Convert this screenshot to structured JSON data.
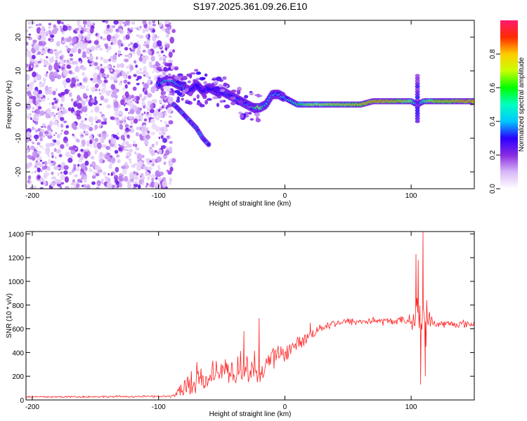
{
  "title": "S197.2025.361.09.26.E10",
  "chart_data": [
    {
      "type": "heatmap",
      "title": "S197.2025.361.09.26.E10",
      "xlabel": "Height of straight line (km)",
      "ylabel": "Frequency (Hz)",
      "xlim": [
        -205,
        150
      ],
      "ylim": [
        -25,
        25
      ],
      "x_ticks": [
        -200,
        -100,
        0,
        100
      ],
      "y_ticks": [
        -20,
        -10,
        0,
        10,
        20
      ],
      "colorbar": {
        "label": "Normalized spectral amplitude",
        "range": [
          0,
          1
        ],
        "ticks": [
          "0.0",
          "0.2",
          "0.4",
          "0.6",
          "0.8"
        ],
        "colors": [
          "#ffffff",
          "#d8b8f8",
          "#8a2be2",
          "#2a00ff",
          "#00c8ff",
          "#00ffc0",
          "#00ff00",
          "#c8ff00",
          "#ffcc00",
          "#ff2a00",
          "#ff1a6e"
        ]
      },
      "noise_region_x": [
        -205,
        -88
      ],
      "ridge": {
        "x": [
          -100,
          -95,
          -90,
          -85,
          -80,
          -75,
          -70,
          -65,
          -60,
          -55,
          -50,
          -45,
          -40,
          -35,
          -30,
          -25,
          -20,
          -15,
          -10,
          -5,
          0,
          5,
          10,
          20,
          30,
          40,
          50,
          60,
          70,
          80,
          90,
          100,
          105,
          110,
          120,
          130,
          140,
          150
        ],
        "y": [
          6,
          7,
          7,
          6,
          5,
          4,
          6,
          4,
          5,
          4,
          4,
          3,
          2,
          1,
          0,
          -1,
          -1,
          0,
          3,
          3,
          2,
          1,
          0,
          0,
          0,
          0,
          0,
          0,
          1,
          1,
          1,
          1,
          0,
          1,
          1,
          1,
          1,
          1
        ],
        "amplitude": [
          0.4,
          0.5,
          0.5,
          0.4,
          0.4,
          0.3,
          0.3,
          0.3,
          0.3,
          0.3,
          0.3,
          0.35,
          0.3,
          0.4,
          0.35,
          0.5,
          0.75,
          0.4,
          0.4,
          0.4,
          0.45,
          0.5,
          0.55,
          0.7,
          0.7,
          0.75,
          0.75,
          0.8,
          0.85,
          0.85,
          0.8,
          0.7,
          0.4,
          0.6,
          0.8,
          0.8,
          0.85,
          0.85
        ]
      },
      "branch": {
        "x": [
          -88,
          -85,
          -80,
          -75,
          -70,
          -65,
          -60
        ],
        "y": [
          0,
          -1,
          -3,
          -5,
          -7,
          -10,
          -12
        ]
      }
    },
    {
      "type": "line",
      "xlabel": "Height of straight line (km)",
      "ylabel": "SNR (10 * v/v)",
      "xlim": [
        -205,
        150
      ],
      "ylim": [
        0,
        1420
      ],
      "x_ticks": [
        -200,
        -100,
        0,
        100
      ],
      "y_ticks": [
        0,
        200,
        400,
        600,
        800,
        1000,
        1200,
        1400
      ],
      "series": [
        {
          "name": "SNR",
          "color": "#ff2020",
          "envelope_x": [
            -205,
            -90,
            -80,
            -70,
            -60,
            -50,
            -40,
            -30,
            -20,
            -10,
            0,
            10,
            20,
            30,
            40,
            50,
            60,
            70,
            80,
            90,
            100,
            105,
            110,
            115,
            120,
            130,
            140,
            150
          ],
          "envelope_y": [
            25,
            30,
            100,
            200,
            230,
            260,
            250,
            270,
            270,
            350,
            400,
            470,
            550,
            620,
            650,
            660,
            660,
            670,
            660,
            670,
            670,
            700,
            700,
            660,
            640,
            640,
            640,
            640
          ],
          "noise_amplitude": [
            10,
            10,
            120,
            150,
            160,
            150,
            150,
            160,
            160,
            120,
            90,
            70,
            60,
            50,
            40,
            40,
            40,
            40,
            40,
            40,
            60,
            250,
            350,
            80,
            40,
            40,
            40,
            40
          ],
          "spikes": [
            {
              "x": -32.4,
              "y": 580
            },
            {
              "x": -20.4,
              "y": 690
            },
            {
              "x": 20.0,
              "y": 650
            },
            {
              "x": 103.8,
              "y": 1230
            },
            {
              "x": 105.6,
              "y": 1180
            },
            {
              "x": 107.5,
              "y": 130
            },
            {
              "x": 109.4,
              "y": 1420
            },
            {
              "x": 111.2,
              "y": 200
            }
          ]
        }
      ]
    }
  ]
}
